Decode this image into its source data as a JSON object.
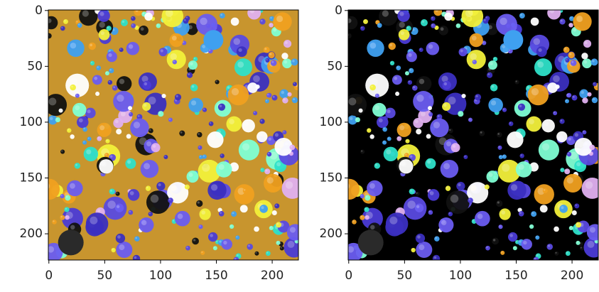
{
  "chart_data": [
    {
      "type": "image",
      "xlim": [
        -0.5,
        223.5
      ],
      "ylim": [
        223.5,
        -0.5
      ],
      "xticks": [
        0,
        50,
        100,
        150,
        200
      ],
      "yticks": [
        0,
        50,
        100,
        150,
        200
      ],
      "background": "#c8952e"
    },
    {
      "type": "image",
      "xlim": [
        -0.5,
        223.5
      ],
      "ylim": [
        223.5,
        -0.5
      ],
      "xticks": [
        0,
        50,
        100,
        150,
        200
      ],
      "yticks": [
        0,
        50,
        100,
        150,
        200
      ],
      "background": "#000000"
    }
  ]
}
